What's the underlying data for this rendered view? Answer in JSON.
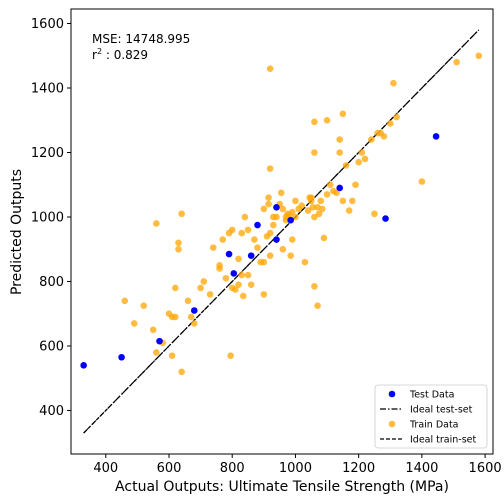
{
  "chart_data": {
    "type": "scatter",
    "xlabel": "Actual Outputs: Ultimate Tensile Strength (MPa)",
    "ylabel": "Predicted Outputs",
    "xlim": [
      290,
      1625
    ],
    "ylim": [
      265,
      1645
    ],
    "xticks": [
      400,
      600,
      800,
      1000,
      1200,
      1400,
      1600
    ],
    "yticks": [
      400,
      600,
      800,
      1000,
      1200,
      1400,
      1600
    ],
    "annotations": {
      "mse": "MSE: 14748.995",
      "r2_label": "r",
      "r2_exp": "2",
      "r2_value": " : 0.829"
    },
    "legend": {
      "position": "lower-right",
      "entries": [
        "Test Data",
        "Ideal test-set",
        "Train Data",
        "Ideal train-set"
      ]
    },
    "ideal_line": {
      "x": [
        330,
        1580
      ],
      "y": [
        330,
        1580
      ]
    },
    "series": [
      {
        "name": "Test Data",
        "color": "#0000ff",
        "points": [
          [
            330,
            540
          ],
          [
            450,
            565
          ],
          [
            570,
            615
          ],
          [
            680,
            710
          ],
          [
            790,
            885
          ],
          [
            805,
            825
          ],
          [
            860,
            880
          ],
          [
            880,
            975
          ],
          [
            940,
            1030
          ],
          [
            940,
            930
          ],
          [
            985,
            990
          ],
          [
            1140,
            1090
          ],
          [
            1285,
            995
          ],
          [
            1445,
            1250
          ]
        ]
      },
      {
        "name": "Train Data",
        "color": "#ffa500",
        "points": [
          [
            460,
            740
          ],
          [
            490,
            670
          ],
          [
            520,
            725
          ],
          [
            550,
            650
          ],
          [
            560,
            580
          ],
          [
            560,
            980
          ],
          [
            580,
            610
          ],
          [
            600,
            700
          ],
          [
            610,
            690
          ],
          [
            610,
            570
          ],
          [
            620,
            780
          ],
          [
            620,
            690
          ],
          [
            630,
            920
          ],
          [
            630,
            900
          ],
          [
            640,
            1010
          ],
          [
            640,
            520
          ],
          [
            660,
            740
          ],
          [
            670,
            690
          ],
          [
            680,
            670
          ],
          [
            700,
            780
          ],
          [
            710,
            800
          ],
          [
            730,
            760
          ],
          [
            740,
            905
          ],
          [
            760,
            850
          ],
          [
            760,
            840
          ],
          [
            770,
            930
          ],
          [
            780,
            810
          ],
          [
            790,
            950
          ],
          [
            795,
            570
          ],
          [
            800,
            960
          ],
          [
            800,
            780
          ],
          [
            810,
            775
          ],
          [
            820,
            790
          ],
          [
            820,
            870
          ],
          [
            830,
            820
          ],
          [
            830,
            950
          ],
          [
            835,
            755
          ],
          [
            840,
            1000
          ],
          [
            850,
            820
          ],
          [
            850,
            960
          ],
          [
            860,
            790
          ],
          [
            870,
            930
          ],
          [
            880,
            905
          ],
          [
            890,
            860
          ],
          [
            900,
            1025
          ],
          [
            900,
            760
          ],
          [
            900,
            860
          ],
          [
            910,
            940
          ],
          [
            915,
            1040
          ],
          [
            915,
            1060
          ],
          [
            920,
            1150
          ],
          [
            920,
            950
          ],
          [
            920,
            880
          ],
          [
            920,
            1460
          ],
          [
            930,
            1000
          ],
          [
            930,
            975
          ],
          [
            940,
            1000
          ],
          [
            940,
            1030
          ],
          [
            950,
            1040
          ],
          [
            955,
            1075
          ],
          [
            960,
            1025
          ],
          [
            960,
            900
          ],
          [
            970,
            990
          ],
          [
            970,
            1000
          ],
          [
            975,
            1010
          ],
          [
            980,
            1005
          ],
          [
            985,
            880
          ],
          [
            990,
            930
          ],
          [
            990,
            1015
          ],
          [
            1000,
            1000
          ],
          [
            1000,
            1050
          ],
          [
            1010,
            1025
          ],
          [
            1020,
            1035
          ],
          [
            1030,
            860
          ],
          [
            1040,
            1020
          ],
          [
            1045,
            1060
          ],
          [
            1050,
            1050
          ],
          [
            1050,
            1060
          ],
          [
            1055,
            1030
          ],
          [
            1060,
            1000
          ],
          [
            1060,
            785
          ],
          [
            1060,
            1295
          ],
          [
            1060,
            1200
          ],
          [
            1070,
            1030
          ],
          [
            1070,
            725
          ],
          [
            1075,
            1010
          ],
          [
            1080,
            1050
          ],
          [
            1085,
            1025
          ],
          [
            1090,
            935
          ],
          [
            1100,
            1300
          ],
          [
            1100,
            1070
          ],
          [
            1110,
            1100
          ],
          [
            1120,
            1080
          ],
          [
            1130,
            1075
          ],
          [
            1140,
            1240
          ],
          [
            1140,
            1200
          ],
          [
            1150,
            1320
          ],
          [
            1150,
            1050
          ],
          [
            1160,
            1160
          ],
          [
            1170,
            1020
          ],
          [
            1180,
            1050
          ],
          [
            1190,
            1100
          ],
          [
            1200,
            1170
          ],
          [
            1210,
            1200
          ],
          [
            1220,
            1180
          ],
          [
            1240,
            1240
          ],
          [
            1250,
            1010
          ],
          [
            1260,
            1260
          ],
          [
            1270,
            1260
          ],
          [
            1280,
            1250
          ],
          [
            1300,
            1290
          ],
          [
            1310,
            1415
          ],
          [
            1320,
            1310
          ],
          [
            1400,
            1110
          ],
          [
            1510,
            1480
          ],
          [
            1580,
            1500
          ]
        ]
      }
    ]
  }
}
